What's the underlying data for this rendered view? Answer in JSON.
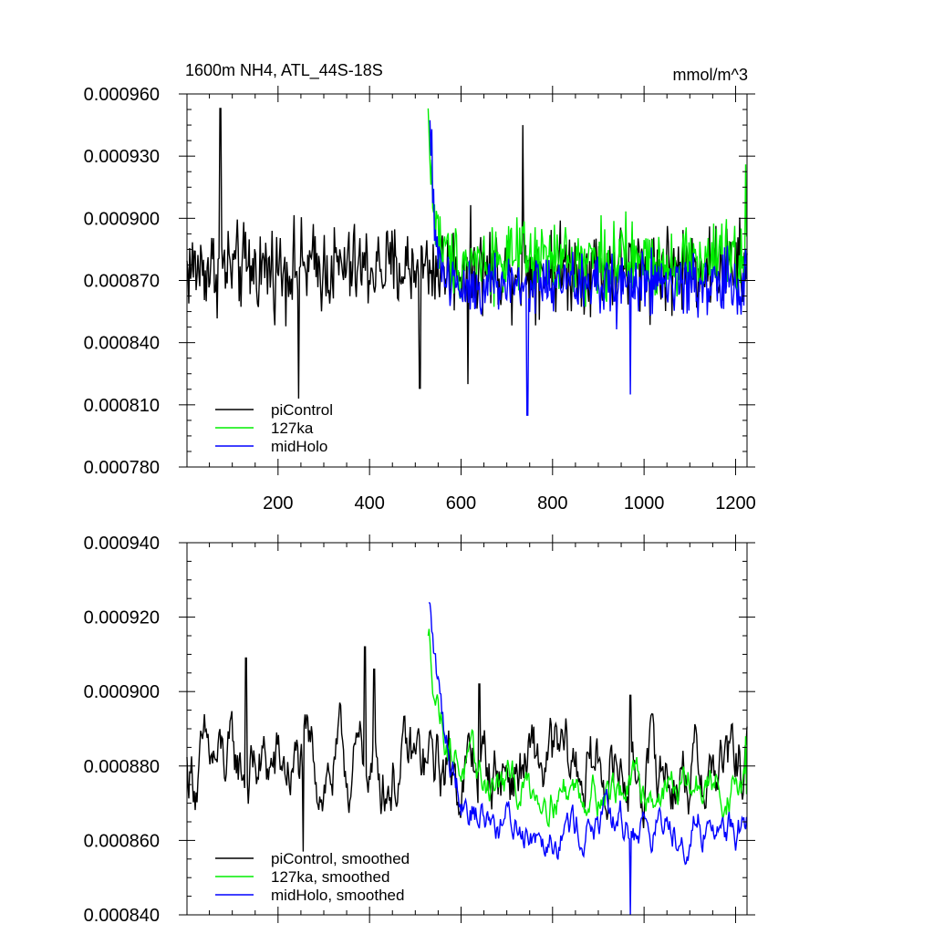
{
  "chart_data": [
    {
      "type": "line",
      "title": "1600m NH4, ATL_44S-18S",
      "units_label": "mmol/m^3",
      "xlim": [
        1,
        1225
      ],
      "ylim": [
        0.00078,
        0.00096
      ],
      "xticks": [
        200,
        400,
        600,
        800,
        1000,
        1200
      ],
      "xtick_labels": [
        "200",
        "400",
        "600",
        "800",
        "1000",
        "1200"
      ],
      "yticks": [
        0.00078,
        0.00081,
        0.00084,
        0.00087,
        0.0009,
        0.00093,
        0.00096
      ],
      "ytick_labels": [
        "0.000780",
        "0.000810",
        "0.000840",
        "0.000870",
        "0.000900",
        "0.000930",
        "0.000960"
      ],
      "legend_position": "bottom-left",
      "series": [
        {
          "name": "piControl",
          "color": "#000000",
          "x": [
            1,
            1225
          ],
          "mean": 0.000876,
          "amplitude": 2.6e-05,
          "highlights": [
            [
              74,
              0.000953
            ],
            [
              245,
              0.000813
            ],
            [
              510,
              0.000818
            ],
            [
              615,
              0.00082
            ],
            [
              735,
              0.000945
            ]
          ]
        },
        {
          "name": "127ka",
          "color": "#00ee00",
          "x": [
            528,
            1225
          ],
          "start": 0.000953,
          "mean": 0.00088,
          "amplitude": 2.2e-05,
          "highlights": [
            [
              528,
              0.000953
            ],
            [
              1222,
              0.000926
            ]
          ]
        },
        {
          "name": "midHolo",
          "color": "#0000ff",
          "x": [
            532,
            1225
          ],
          "start": 0.000943,
          "mean": 0.000868,
          "amplitude": 2e-05,
          "highlights": [
            [
              536,
              0.000943
            ],
            [
              745,
              0.000805
            ],
            [
              970,
              0.000815
            ]
          ]
        }
      ]
    },
    {
      "type": "line",
      "title": "",
      "xlim": [
        1,
        1225
      ],
      "ylim": [
        0.00084,
        0.00094
      ],
      "xticks": [
        200,
        400,
        600,
        800,
        1000,
        1200
      ],
      "yticks": [
        0.00084,
        0.00086,
        0.00088,
        0.0009,
        0.00092,
        0.00094
      ],
      "ytick_labels": [
        "0.000840",
        "0.000860",
        "0.000880",
        "0.000900",
        "0.000920",
        "0.000940"
      ],
      "legend_position": "bottom-left",
      "series": [
        {
          "name": "piControl, smoothed",
          "color": "#000000",
          "x": [
            1,
            1225
          ],
          "mean": 0.000879,
          "amplitude": 1.5e-05,
          "highlights": [
            [
              130,
              0.000909
            ],
            [
              255,
              0.000857
            ],
            [
              390,
              0.000912
            ],
            [
              410,
              0.000906
            ],
            [
              640,
              0.000902
            ],
            [
              970,
              0.000899
            ]
          ]
        },
        {
          "name": "127ka, smoothed",
          "color": "#00ee00",
          "x": [
            528,
            1225
          ],
          "start": 0.000915,
          "mean": 0.000874,
          "amplitude": 8e-06,
          "highlights": [
            [
              528,
              0.000915
            ],
            [
              1222,
              0.000888
            ]
          ]
        },
        {
          "name": "midHolo, smoothed",
          "color": "#0000ff",
          "x": [
            530,
            1225
          ],
          "start": 0.000924,
          "mean": 0.000864,
          "amplitude": 8e-06,
          "highlights": [
            [
              530,
              0.000924
            ],
            [
              970,
              0.00084
            ]
          ]
        }
      ]
    }
  ]
}
